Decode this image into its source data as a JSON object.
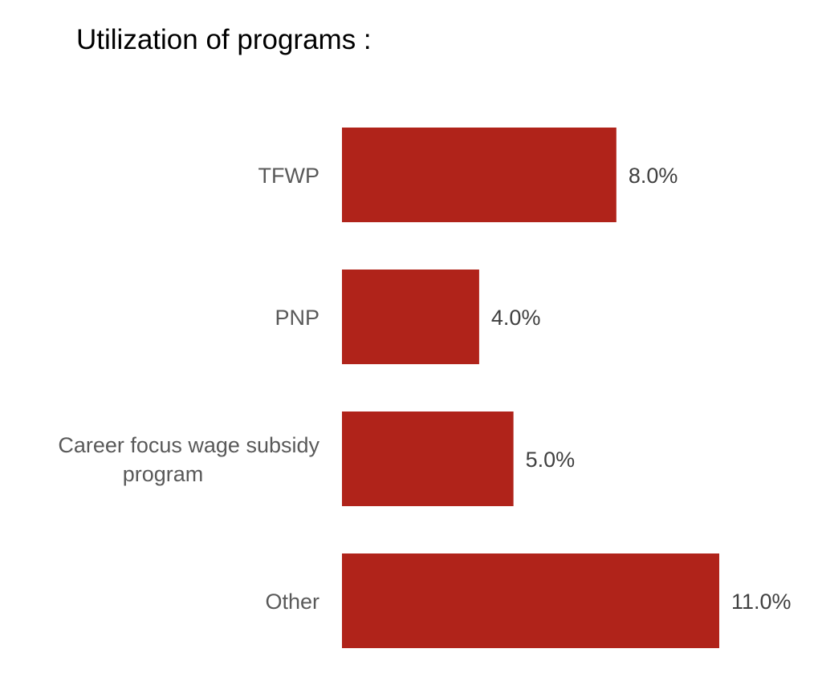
{
  "chart_data": {
    "type": "bar",
    "orientation": "horizontal",
    "title": "Utilization of programs :",
    "categories": [
      [
        "TFWP"
      ],
      [
        "PNP"
      ],
      [
        "Career focus wage subsidy",
        "program"
      ],
      [
        "Other"
      ]
    ],
    "category_names": [
      "TFWP",
      "PNP",
      "Career focus wage subsidy program",
      "Other"
    ],
    "values": [
      8.0,
      4.0,
      5.0,
      11.0
    ],
    "value_labels": [
      "8.0%",
      "4.0%",
      "5.0%",
      "11.0%"
    ],
    "xlabel": "",
    "ylabel": "",
    "xlim": [
      0,
      11
    ],
    "grid": false,
    "bar_color": "#b0231a"
  }
}
